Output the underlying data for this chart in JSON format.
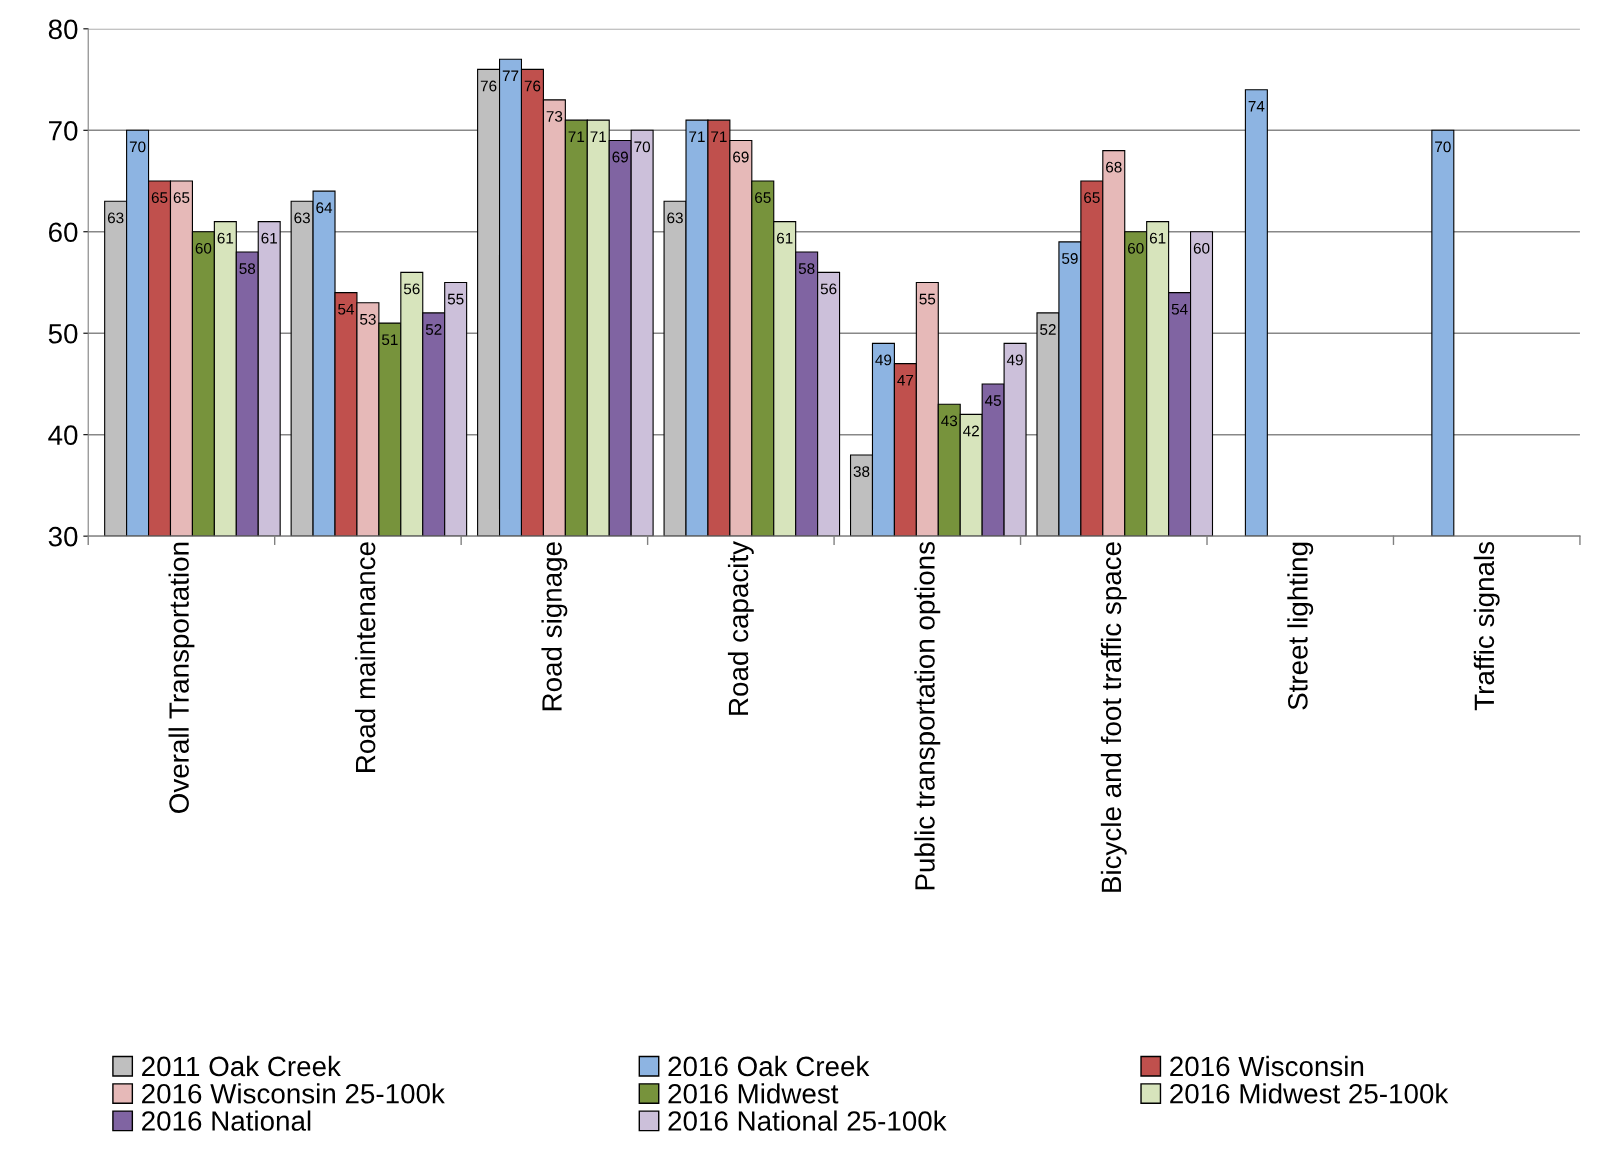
{
  "chart_data": {
    "type": "bar",
    "categories": [
      "Overall Transportation",
      "Road maintenance",
      "Road signage",
      "Road capacity",
      "Public transportation options",
      "Bicycle and foot traffic space",
      "Street lighting",
      "Traffic signals"
    ],
    "series": [
      {
        "name": "2011 Oak Creek",
        "color": "#bfbfbf",
        "values": [
          63,
          63,
          76,
          63,
          38,
          52,
          null,
          null
        ]
      },
      {
        "name": "2016 Oak Creek",
        "color": "#8db4e2",
        "values": [
          70,
          64,
          77,
          71,
          49,
          59,
          74,
          70
        ]
      },
      {
        "name": "2016 Wisconsin",
        "color": "#c0504d",
        "values": [
          65,
          54,
          76,
          71,
          47,
          65,
          null,
          null
        ]
      },
      {
        "name": "2016 Wisconsin 25-100k",
        "color": "#e6b9b8",
        "values": [
          65,
          53,
          73,
          69,
          55,
          68,
          null,
          null
        ]
      },
      {
        "name": "2016 Midwest",
        "color": "#77933c",
        "values": [
          60,
          51,
          71,
          65,
          43,
          60,
          null,
          null
        ]
      },
      {
        "name": "2016 Midwest 25-100k",
        "color": "#d7e4bc",
        "values": [
          61,
          56,
          71,
          61,
          42,
          61,
          null,
          null
        ]
      },
      {
        "name": "2016 National",
        "color": "#8064a2",
        "values": [
          58,
          52,
          69,
          58,
          45,
          54,
          null,
          null
        ]
      },
      {
        "name": "2016 National 25-100k",
        "color": "#ccc0da",
        "values": [
          61,
          55,
          70,
          56,
          49,
          60,
          null,
          null
        ]
      }
    ],
    "ylim": [
      30,
      80
    ],
    "yticks": [
      30,
      40,
      50,
      60,
      70,
      80
    ],
    "grid": "y",
    "legend": "bottom",
    "data_labels": true
  }
}
